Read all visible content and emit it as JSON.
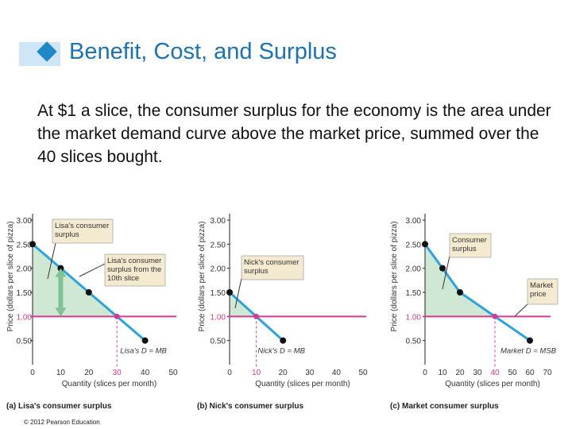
{
  "slide": {
    "title": "Benefit, Cost, and Surplus",
    "body": "At $1 a slice, the consumer surplus for the economy is the area under the market demand curve above the market price, summed over the 40 slices bought.",
    "copyright": "© 2012 Pearson Education"
  },
  "colors": {
    "title": "#1a73b8",
    "demand_line": "#2aa4de",
    "price_line": "#d63a8c",
    "surplus_fill": "#cfe8d4",
    "arrow": "#7fc294",
    "diamond": "#1e88c8"
  },
  "chart_data": [
    {
      "type": "line",
      "panel_label": "(a) Lisa's consumer surplus",
      "ylabel": "Price (dollars per slice of pizza)",
      "xlabel": "Quantity (slices per month)",
      "xlim": [
        0,
        50
      ],
      "ylim": [
        0,
        3.0
      ],
      "xticks": [
        0,
        10,
        20,
        30,
        40,
        50
      ],
      "yticks": [
        "0.50",
        "1.00",
        "1.50",
        "2.00",
        "2.50",
        "3.00"
      ],
      "highlight_xtick": "30",
      "price": 1.0,
      "price_label": "1.00",
      "demand": {
        "x": [
          0,
          10,
          20,
          30,
          40
        ],
        "y": [
          2.5,
          2.0,
          1.5,
          1.0,
          0.5
        ]
      },
      "curve_label": "Lisa's D = MB",
      "annotations": [
        "Lisa's consumer surplus",
        "Lisa's consumer surplus from the 10th slice"
      ],
      "arrow_range": [
        1.0,
        2.0
      ],
      "arrow_x": 10
    },
    {
      "type": "line",
      "panel_label": "(b) Nick's consumer surplus",
      "ylabel": "Price (dollars per slice of pizza)",
      "xlabel": "Quantity (slices per month)",
      "xlim": [
        0,
        50
      ],
      "ylim": [
        0,
        3.0
      ],
      "xticks": [
        0,
        10,
        20,
        30,
        40,
        50
      ],
      "yticks": [
        "0.50",
        "1.00",
        "1.50",
        "2.00",
        "2.50",
        "3.00"
      ],
      "highlight_xtick": "10",
      "price": 1.0,
      "price_label": "1.00",
      "demand": {
        "x": [
          0,
          10,
          20
        ],
        "y": [
          1.5,
          1.0,
          0.5
        ]
      },
      "curve_label": "Nick's D = MB",
      "annotations": [
        "Nick's consumer surplus"
      ]
    },
    {
      "type": "line",
      "panel_label": "(c) Market consumer surplus",
      "ylabel": "Price (dollars per slice of pizza)",
      "xlabel": "Quantity (slices per month)",
      "xlim": [
        0,
        70
      ],
      "ylim": [
        0,
        3.0
      ],
      "xticks": [
        0,
        10,
        20,
        30,
        40,
        50,
        60,
        70
      ],
      "yticks": [
        "0.50",
        "1.00",
        "1.50",
        "2.00",
        "2.50",
        "3.00"
      ],
      "highlight_xtick": "40",
      "price": 1.0,
      "price_label": "1.00",
      "demand": {
        "x": [
          0,
          10,
          20,
          40,
          60
        ],
        "y": [
          2.5,
          2.0,
          1.5,
          1.0,
          0.5
        ]
      },
      "curve_label": "Market D = MSB",
      "annotations": [
        "Consumer surplus",
        "Market price"
      ]
    }
  ]
}
